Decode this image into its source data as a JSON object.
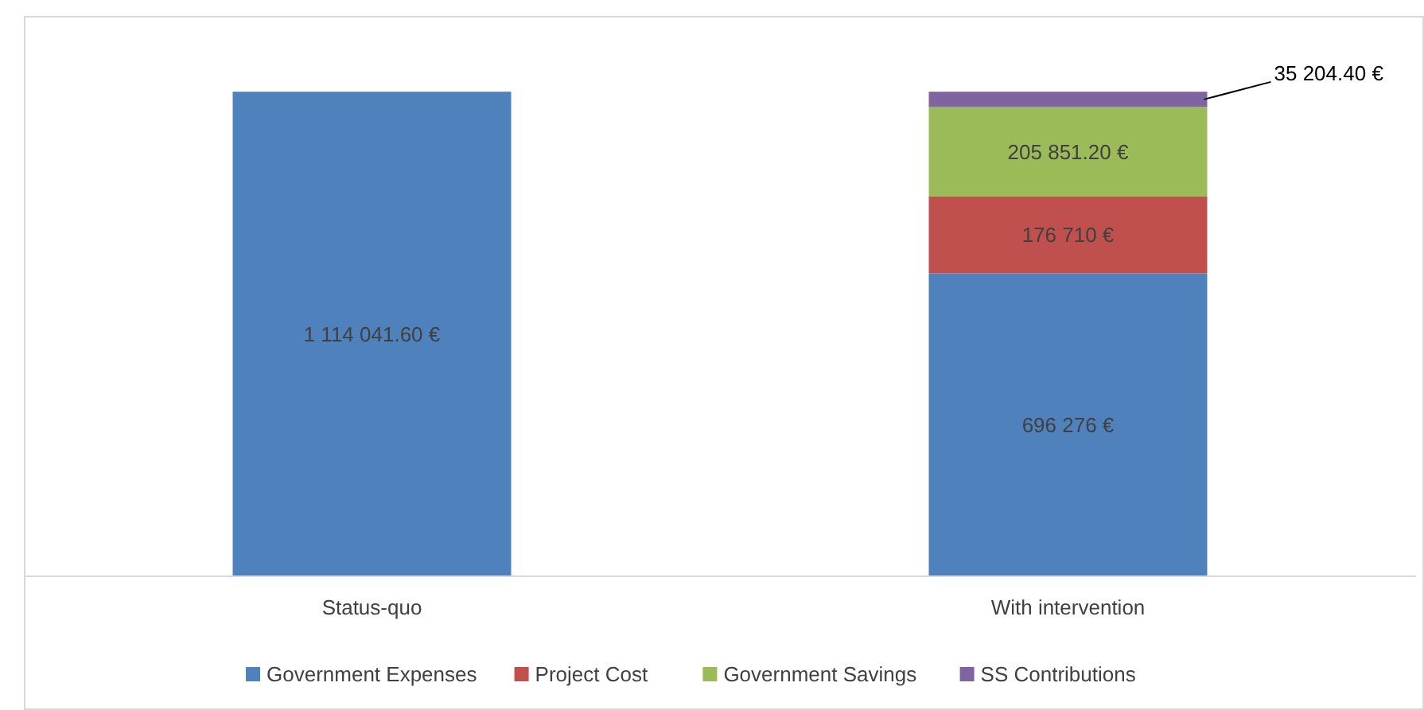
{
  "chart_data": {
    "type": "bar",
    "stacked": true,
    "categories": [
      "Status-quo",
      "With intervention"
    ],
    "legend": "bottom",
    "series": [
      {
        "name": "Government Expenses",
        "color": "#4f81bd",
        "values": [
          1114041.6,
          696276
        ],
        "value_labels": [
          "1 114 041.60 €",
          "696 276 €"
        ]
      },
      {
        "name": "Project Cost",
        "color": "#c0504d",
        "values": [
          null,
          176710
        ],
        "value_labels": [
          null,
          "176 710 €"
        ]
      },
      {
        "name": "Government Savings",
        "color": "#9bbb59",
        "values": [
          null,
          205851.2
        ],
        "value_labels": [
          null,
          "205 851.20 €"
        ]
      },
      {
        "name": "SS Contributions",
        "color": "#8064a2",
        "values": [
          null,
          35204.4
        ],
        "value_labels": [
          null,
          "35 204.40 €"
        ]
      }
    ]
  }
}
